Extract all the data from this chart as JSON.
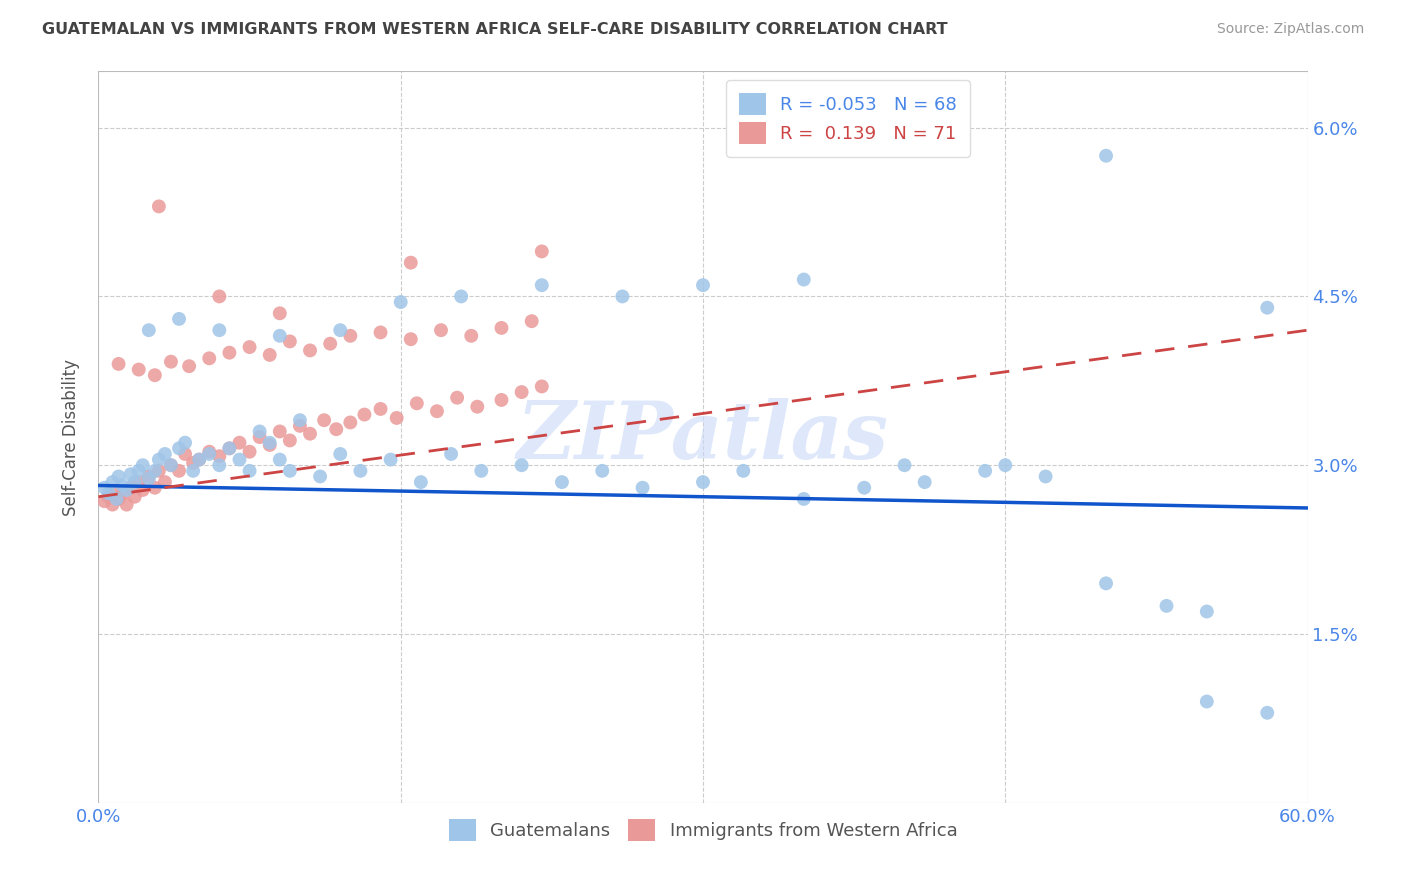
{
  "title": "GUATEMALAN VS IMMIGRANTS FROM WESTERN AFRICA SELF-CARE DISABILITY CORRELATION CHART",
  "source": "Source: ZipAtlas.com",
  "ylabel": "Self-Care Disability",
  "xlim": [
    0.0,
    0.6
  ],
  "ylim": [
    0.0,
    0.065
  ],
  "yticks": [
    0.0,
    0.015,
    0.03,
    0.045,
    0.06
  ],
  "ytick_labels_right": [
    "",
    "1.5%",
    "3.0%",
    "4.5%",
    "6.0%"
  ],
  "xtick_positions": [
    0.0,
    0.6
  ],
  "xtick_labels": [
    "0.0%",
    "60.0%"
  ],
  "watermark": "ZIPatlas",
  "r_blue": "-0.053",
  "n_blue": "68",
  "r_pink": "0.139",
  "n_pink": "71",
  "blue_color": "#9fc5e8",
  "pink_color": "#ea9999",
  "trend_blue_color": "#1155cc",
  "trend_pink_color": "#cc4444",
  "background_color": "#ffffff",
  "grid_color": "#cccccc",
  "title_color": "#434343",
  "axis_tick_color": "#4a86e8",
  "blue_line_start_y": 0.0282,
  "blue_line_end_y": 0.0262,
  "pink_line_start_y": 0.0272,
  "pink_line_end_y": 0.042,
  "blue_scatter_x": [
    0.003,
    0.005,
    0.007,
    0.009,
    0.01,
    0.012,
    0.014,
    0.016,
    0.018,
    0.02,
    0.022,
    0.025,
    0.028,
    0.03,
    0.033,
    0.036,
    0.04,
    0.043,
    0.047,
    0.05,
    0.055,
    0.06,
    0.065,
    0.07,
    0.075,
    0.08,
    0.085,
    0.09,
    0.095,
    0.1,
    0.11,
    0.12,
    0.13,
    0.145,
    0.16,
    0.175,
    0.19,
    0.21,
    0.23,
    0.25,
    0.27,
    0.3,
    0.32,
    0.35,
    0.38,
    0.41,
    0.44,
    0.47,
    0.5,
    0.53,
    0.025,
    0.04,
    0.06,
    0.09,
    0.12,
    0.15,
    0.18,
    0.22,
    0.26,
    0.3,
    0.35,
    0.4,
    0.45,
    0.5,
    0.55,
    0.58,
    0.55,
    0.58
  ],
  "blue_scatter_y": [
    0.028,
    0.0275,
    0.0285,
    0.027,
    0.029,
    0.0282,
    0.0278,
    0.0292,
    0.0285,
    0.0295,
    0.03,
    0.0288,
    0.0295,
    0.0305,
    0.031,
    0.03,
    0.0315,
    0.032,
    0.0295,
    0.0305,
    0.031,
    0.03,
    0.0315,
    0.0305,
    0.0295,
    0.033,
    0.032,
    0.0305,
    0.0295,
    0.034,
    0.029,
    0.031,
    0.0295,
    0.0305,
    0.0285,
    0.031,
    0.0295,
    0.03,
    0.0285,
    0.0295,
    0.028,
    0.0285,
    0.0295,
    0.027,
    0.028,
    0.0285,
    0.0295,
    0.029,
    0.0195,
    0.0175,
    0.042,
    0.043,
    0.042,
    0.0415,
    0.042,
    0.0445,
    0.045,
    0.046,
    0.045,
    0.046,
    0.0465,
    0.03,
    0.03,
    0.0575,
    0.017,
    0.044,
    0.009,
    0.008
  ],
  "pink_scatter_x": [
    0.003,
    0.005,
    0.007,
    0.009,
    0.01,
    0.012,
    0.014,
    0.016,
    0.018,
    0.02,
    0.022,
    0.025,
    0.028,
    0.03,
    0.033,
    0.036,
    0.04,
    0.043,
    0.047,
    0.05,
    0.055,
    0.06,
    0.065,
    0.07,
    0.075,
    0.08,
    0.085,
    0.09,
    0.095,
    0.1,
    0.105,
    0.112,
    0.118,
    0.125,
    0.132,
    0.14,
    0.148,
    0.158,
    0.168,
    0.178,
    0.188,
    0.2,
    0.21,
    0.22,
    0.01,
    0.02,
    0.028,
    0.036,
    0.045,
    0.055,
    0.065,
    0.075,
    0.085,
    0.095,
    0.105,
    0.115,
    0.125,
    0.14,
    0.155,
    0.17,
    0.185,
    0.2,
    0.215,
    0.03,
    0.06,
    0.09,
    0.155,
    0.22
  ],
  "pink_scatter_y": [
    0.0268,
    0.0272,
    0.0265,
    0.0278,
    0.027,
    0.0275,
    0.0265,
    0.028,
    0.0272,
    0.0285,
    0.0278,
    0.029,
    0.028,
    0.0295,
    0.0285,
    0.03,
    0.0295,
    0.031,
    0.0302,
    0.0305,
    0.0312,
    0.0308,
    0.0315,
    0.032,
    0.0312,
    0.0325,
    0.0318,
    0.033,
    0.0322,
    0.0335,
    0.0328,
    0.034,
    0.0332,
    0.0338,
    0.0345,
    0.035,
    0.0342,
    0.0355,
    0.0348,
    0.036,
    0.0352,
    0.0358,
    0.0365,
    0.037,
    0.039,
    0.0385,
    0.038,
    0.0392,
    0.0388,
    0.0395,
    0.04,
    0.0405,
    0.0398,
    0.041,
    0.0402,
    0.0408,
    0.0415,
    0.0418,
    0.0412,
    0.042,
    0.0415,
    0.0422,
    0.0428,
    0.053,
    0.045,
    0.0435,
    0.048,
    0.049
  ]
}
